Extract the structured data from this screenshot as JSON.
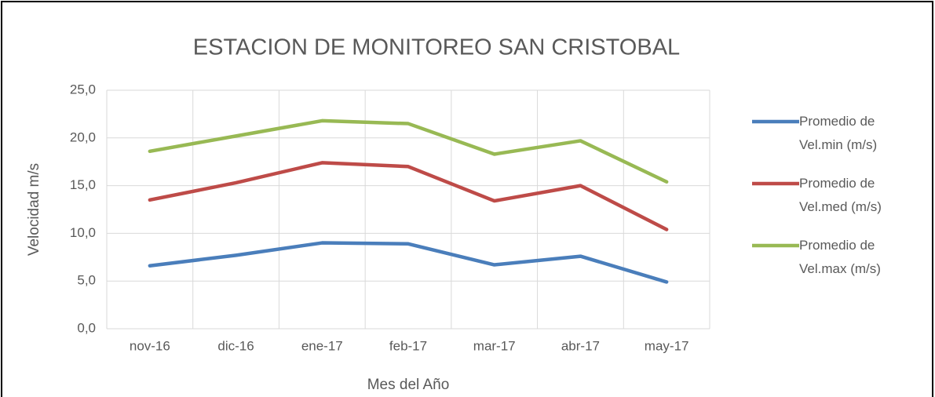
{
  "chart_data": {
    "type": "line",
    "title": "ESTACION DE MONITOREO SAN CRISTOBAL",
    "xlabel": "Mes del Año",
    "ylabel": "Velocidad m/s",
    "categories": [
      "nov-16",
      "dic-16",
      "ene-17",
      "feb-17",
      "mar-17",
      "abr-17",
      "may-17"
    ],
    "series": [
      {
        "name": "Promedio de Vel.min (m/s)",
        "color": "#4a7ebb",
        "values": [
          6.6,
          7.7,
          9.0,
          8.9,
          6.7,
          7.6,
          4.9
        ]
      },
      {
        "name": "Promedio de Vel.med (m/s)",
        "color": "#be4b48",
        "values": [
          13.5,
          15.3,
          17.4,
          17.0,
          13.4,
          15.0,
          10.4
        ]
      },
      {
        "name": "Promedio de Vel.max (m/s)",
        "color": "#98b954",
        "values": [
          18.6,
          20.2,
          21.8,
          21.5,
          18.3,
          19.7,
          15.4
        ]
      }
    ],
    "ylim": [
      0,
      25
    ],
    "yticks": [
      {
        "value": 0,
        "label": "0,0"
      },
      {
        "value": 5,
        "label": "5,0"
      },
      {
        "value": 10,
        "label": "10,0"
      },
      {
        "value": 15,
        "label": "15,0"
      },
      {
        "value": 20,
        "label": "20,0"
      },
      {
        "value": 25,
        "label": "25,0"
      }
    ],
    "grid": true,
    "legend": "right"
  }
}
